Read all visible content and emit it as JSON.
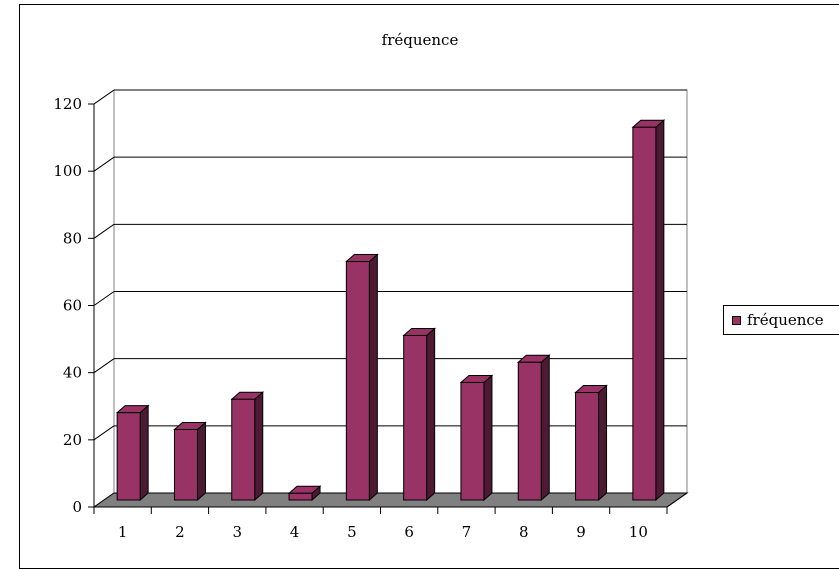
{
  "chart_data": {
    "type": "bar",
    "title": "fréquence",
    "xlabel": "",
    "ylabel": "",
    "categories": [
      "1",
      "2",
      "3",
      "4",
      "5",
      "6",
      "7",
      "8",
      "9",
      "10"
    ],
    "series": [
      {
        "name": "fréquence",
        "values": [
          26,
          21,
          30,
          2,
          71,
          49,
          35,
          41,
          32,
          111
        ],
        "color": "#993366"
      }
    ],
    "ylim": [
      0,
      120
    ],
    "yticks": [
      "0",
      "20",
      "40",
      "60",
      "80",
      "100",
      "120"
    ],
    "grid": true,
    "legend_position": "right",
    "style": "3d-column"
  }
}
